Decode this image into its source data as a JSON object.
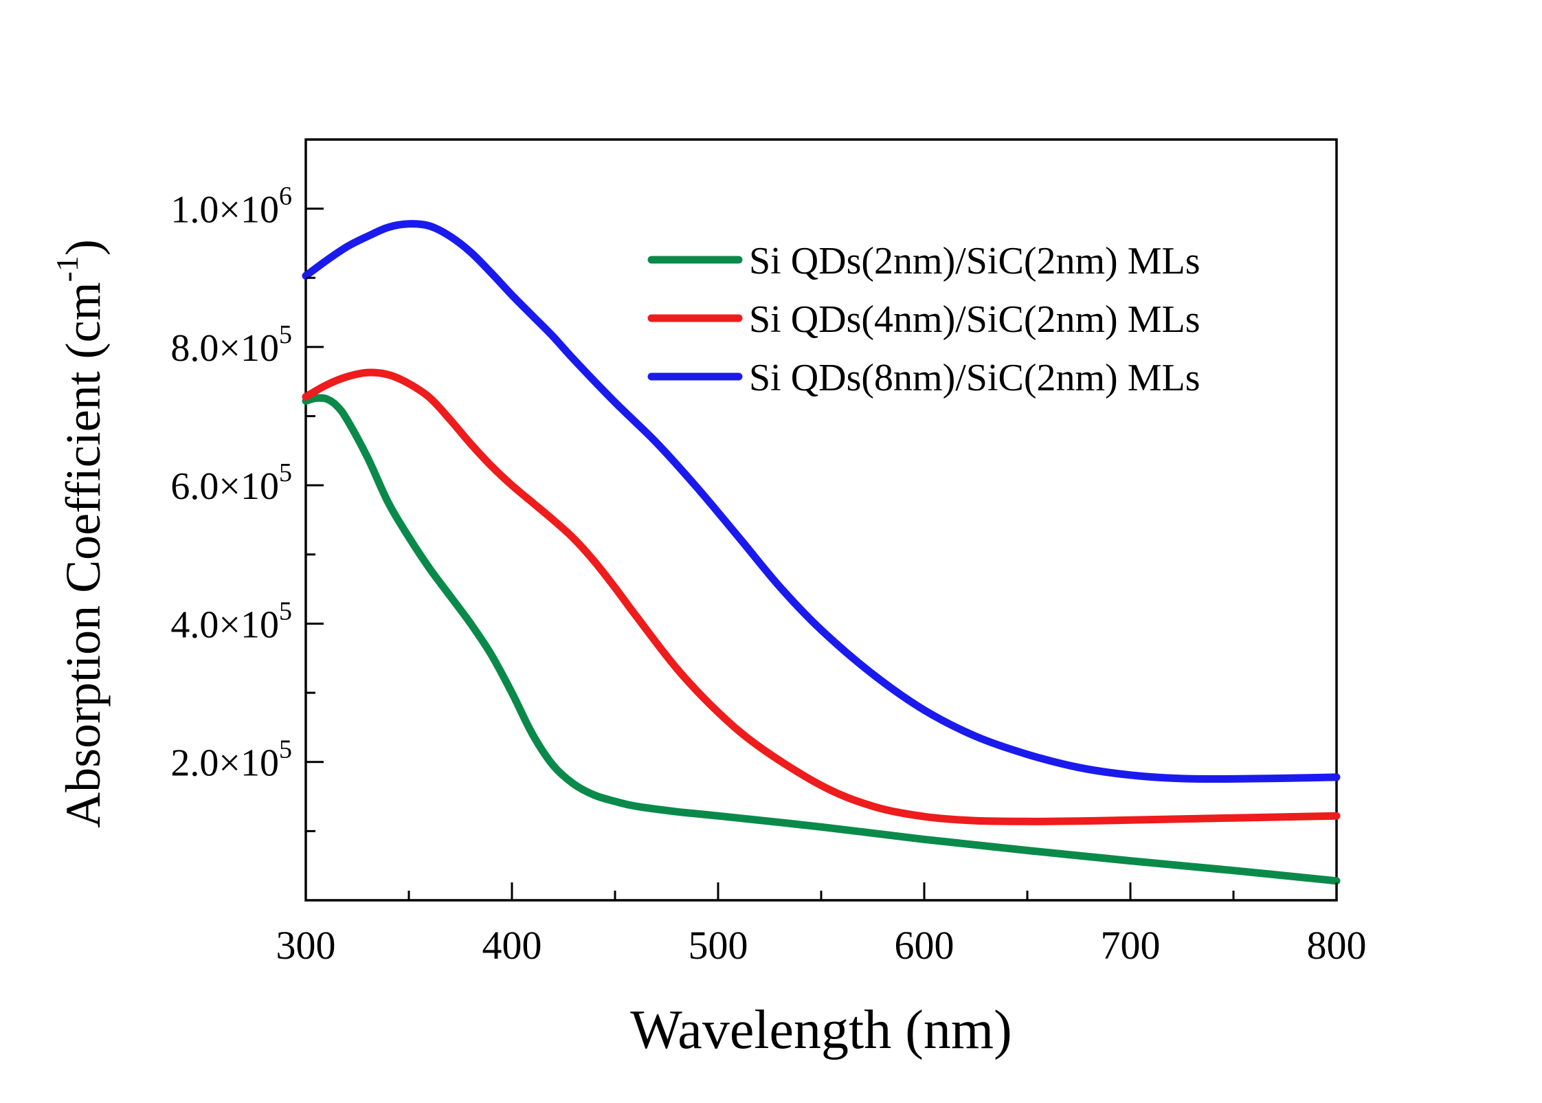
{
  "chart_data": {
    "type": "line",
    "title": "",
    "xlabel": "Wavelength (nm)",
    "ylabel_main": "Absorption Coefficient (cm",
    "ylabel_sup": "-1",
    "ylabel_close": ")",
    "xlim": [
      300,
      800
    ],
    "ylim": [
      0,
      1100000
    ],
    "grid": false,
    "legend_position": "top-right",
    "x_ticks": [
      {
        "value": 300,
        "label": "300"
      },
      {
        "value": 400,
        "label": "400"
      },
      {
        "value": 500,
        "label": "500"
      },
      {
        "value": 600,
        "label": "600"
      },
      {
        "value": 700,
        "label": "700"
      },
      {
        "value": 800,
        "label": "800"
      }
    ],
    "x_minor_ticks": [
      350,
      450,
      550,
      650,
      750
    ],
    "y_ticks": [
      {
        "value": 200000,
        "mantissa": "2.0",
        "times": "×10",
        "exp": "5"
      },
      {
        "value": 400000,
        "mantissa": "4.0",
        "times": "×10",
        "exp": "5"
      },
      {
        "value": 600000,
        "mantissa": "6.0",
        "times": "×10",
        "exp": "5"
      },
      {
        "value": 800000,
        "mantissa": "8.0",
        "times": "×10",
        "exp": "5"
      },
      {
        "value": 1000000,
        "mantissa": "1.0",
        "times": "×10",
        "exp": "6"
      }
    ],
    "y_minor_ticks": [
      100000,
      300000,
      500000,
      700000,
      900000
    ],
    "series": [
      {
        "name": "Si QDs(2nm)/SiC(2nm) MLs",
        "color": "#0a8a4a",
        "x": [
          300,
          305,
          310,
          315,
          320,
          330,
          340,
          350,
          360,
          370,
          380,
          390,
          400,
          410,
          420,
          430,
          440,
          450,
          460,
          480,
          500,
          550,
          600,
          650,
          700,
          750,
          800
        ],
        "y": [
          722000,
          726000,
          725000,
          715000,
          695000,
          640000,
          575000,
          525000,
          480000,
          440000,
          400000,
          355000,
          300000,
          240000,
          195000,
          168000,
          152000,
          143000,
          136000,
          128000,
          122000,
          106000,
          88000,
          72000,
          57000,
          43000,
          28000
        ]
      },
      {
        "name": "Si QDs(4nm)/SiC(2nm) MLs",
        "color": "#ee1c1c",
        "x": [
          300,
          310,
          320,
          330,
          340,
          350,
          360,
          370,
          380,
          390,
          400,
          410,
          420,
          430,
          440,
          450,
          460,
          480,
          500,
          520,
          550,
          575,
          600,
          625,
          650,
          675,
          700,
          750,
          800
        ],
        "y": [
          728000,
          745000,
          757000,
          763000,
          760000,
          747000,
          727000,
          695000,
          660000,
          628000,
          600000,
          575000,
          550000,
          523000,
          490000,
          452000,
          412000,
          335000,
          272000,
          222000,
          166000,
          136000,
          121000,
          115000,
          114000,
          114500,
          116000,
          119000,
          122000
        ]
      },
      {
        "name": "Si QDs(8nm)/SiC(2nm) MLs",
        "color": "#1a1aee",
        "x": [
          300,
          310,
          320,
          330,
          340,
          350,
          360,
          370,
          380,
          390,
          400,
          410,
          420,
          430,
          450,
          470,
          490,
          510,
          530,
          550,
          575,
          600,
          625,
          650,
          675,
          700,
          725,
          750,
          775,
          800
        ],
        "y": [
          903000,
          925000,
          945000,
          960000,
          973000,
          978000,
          975000,
          960000,
          937000,
          907000,
          875000,
          845000,
          815000,
          782000,
          720000,
          662000,
          596000,
          525000,
          453000,
          391000,
          327000,
          275000,
          237000,
          211000,
          192000,
          181000,
          176000,
          175500,
          176500,
          178000
        ]
      }
    ]
  }
}
